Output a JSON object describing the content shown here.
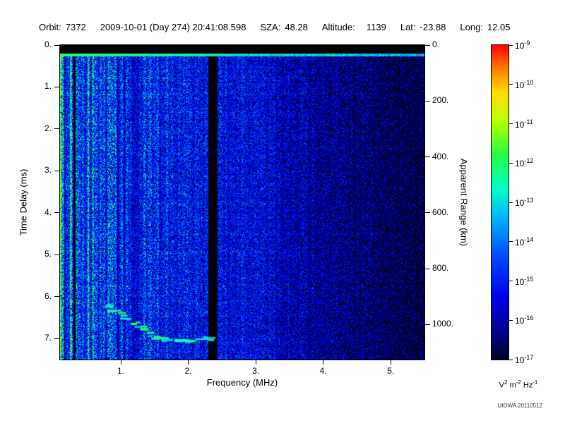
{
  "header": {
    "orbit_label": "Orbit:",
    "orbit_value": "7372",
    "datetime": "2009-10-01 (Day 274) 20:41:08.598",
    "sza_label": "SZA:",
    "sza_value": "48.28",
    "altitude_label": "Altitude:",
    "altitude_value": "1139",
    "lat_label": "Lat:",
    "lat_value": "-23.88",
    "long_label": "Long:",
    "long_value": "12.05"
  },
  "credit": "UIOWA 20110512",
  "chart_data": {
    "type": "heatmap",
    "description": "Radar sounder ionogram: received spectral density vs frequency (x) and time delay (y), rainbow log color scale",
    "grid": false,
    "x_axis": {
      "label": "Frequency (MHz)",
      "min": 0.1,
      "max": 5.5,
      "ticks": [
        1,
        2,
        3,
        4,
        5
      ],
      "tick_labels": [
        "1.",
        "2.",
        "3.",
        "4.",
        "5."
      ]
    },
    "y_axis": {
      "label": "Time Delay (ms)",
      "min": 0,
      "max": 7.5,
      "inverted": true,
      "ticks": [
        0,
        1,
        2,
        3,
        4,
        5,
        6,
        7
      ],
      "tick_labels": [
        "0.",
        "1.",
        "2.",
        "3.",
        "4.",
        "5.",
        "6.",
        "7."
      ]
    },
    "right_axis": {
      "label": "Apparent Range (km)",
      "km_per_ms": 150,
      "ticks_km": [
        0,
        200,
        400,
        600,
        800,
        1000
      ],
      "tick_labels": [
        "0.",
        "200.",
        "400.",
        "600.",
        "800.",
        "1000."
      ]
    },
    "colorbar": {
      "scale": "log",
      "max": "1e-9",
      "min": "1e-17",
      "tick_exponents": [
        -9,
        -10,
        -11,
        -12,
        -13,
        -14,
        -15,
        -16,
        -17
      ],
      "unit_parts": [
        {
          "base": "V",
          "exp": "2"
        },
        {
          "base": "m",
          "exp": "-2"
        },
        {
          "base": "Hz",
          "exp": "-1"
        }
      ],
      "stops": [
        {
          "p": 0.0,
          "c": "#000022"
        },
        {
          "p": 0.1,
          "c": "#000099"
        },
        {
          "p": 0.2,
          "c": "#0000ee"
        },
        {
          "p": 0.32,
          "c": "#0044ff"
        },
        {
          "p": 0.44,
          "c": "#00aaff"
        },
        {
          "p": 0.54,
          "c": "#00ffcc"
        },
        {
          "p": 0.65,
          "c": "#22ff44"
        },
        {
          "p": 0.76,
          "c": "#bbff00"
        },
        {
          "p": 0.85,
          "c": "#ffdd00"
        },
        {
          "p": 0.93,
          "c": "#ff7700"
        },
        {
          "p": 1.0,
          "c": "#ff0000"
        }
      ]
    },
    "features": {
      "seed": 7372,
      "black_band_top_ms": 0.2,
      "bright_surface_line_ms": 0.27,
      "noise_base_profile_mhz_level": [
        [
          0.1,
          0.37
        ],
        [
          0.4,
          0.34
        ],
        [
          1.0,
          0.31
        ],
        [
          1.8,
          0.29
        ],
        [
          2.8,
          0.25
        ],
        [
          3.5,
          0.21
        ],
        [
          4.2,
          0.17
        ],
        [
          5.5,
          0.125
        ]
      ],
      "dark_vertical_bands_mhz": [
        [
          2.3,
          2.43
        ],
        [
          0.3,
          0.335
        ]
      ],
      "echo_trace_mhz_ms": [
        [
          0.8,
          6.2
        ],
        [
          0.9,
          6.3
        ],
        [
          1.0,
          6.4
        ],
        [
          1.1,
          6.5
        ],
        [
          1.2,
          6.62
        ],
        [
          1.32,
          6.72
        ],
        [
          1.45,
          6.85
        ],
        [
          1.58,
          6.95
        ],
        [
          1.7,
          7.0
        ],
        [
          1.82,
          7.02
        ],
        [
          1.95,
          7.02
        ],
        [
          2.08,
          7.0
        ],
        [
          2.2,
          7.0
        ],
        [
          2.32,
          6.98
        ]
      ]
    }
  }
}
